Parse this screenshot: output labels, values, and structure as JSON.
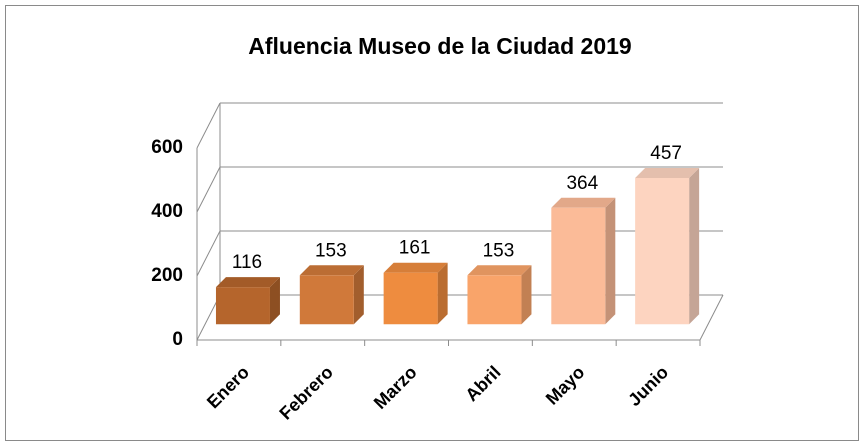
{
  "chart_data": {
    "type": "bar3d",
    "title": "Afluencia  Museo de la Ciudad  2019",
    "categories": [
      "Enero",
      "Febrero",
      "Marzo",
      "Abril",
      "Mayo",
      "Junio"
    ],
    "values": [
      116,
      153,
      161,
      153,
      364,
      457
    ],
    "colors": [
      "#b5652c",
      "#d0793a",
      "#ee8c3f",
      "#f9a46a",
      "#fbbb98",
      "#fdd4c0"
    ],
    "ylim": [
      0,
      600
    ],
    "yticks": [
      0,
      200,
      400,
      600
    ],
    "grid": true
  }
}
